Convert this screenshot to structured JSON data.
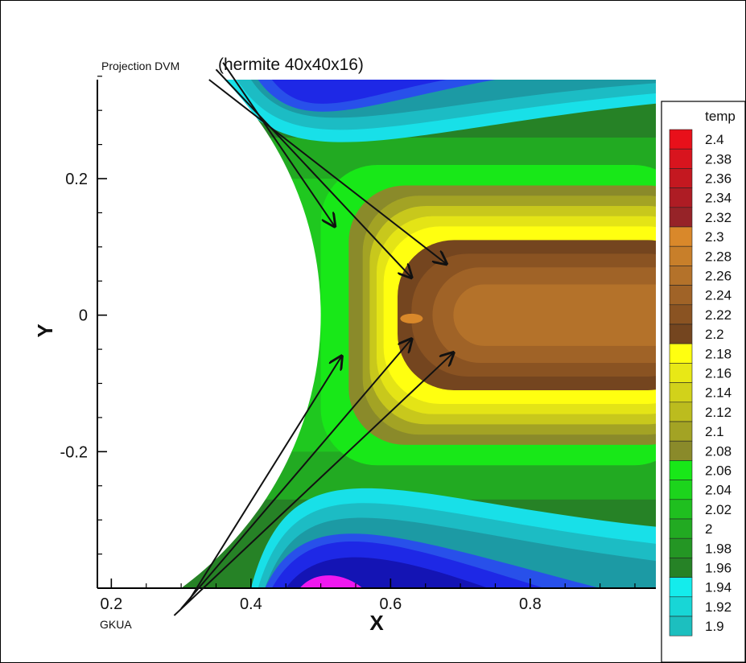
{
  "chart_data": {
    "type": "contour",
    "title": "(hermite 40x40x16)",
    "title_prefix": "Projection DVM",
    "bottom_label": "GKUA",
    "xlabel": "X",
    "ylabel": "Y",
    "xlim": [
      0.18,
      0.98
    ],
    "ylim": [
      -0.4,
      0.345
    ],
    "x_ticks": [
      0.2,
      0.4,
      0.6,
      0.8
    ],
    "x_tick_labels": [
      "0.2",
      "0.4",
      "0.6",
      "0.8"
    ],
    "y_ticks": [
      0.2,
      0,
      -0.2
    ],
    "y_tick_labels": [
      "0.2",
      "0",
      "-0.2"
    ],
    "body": {
      "shape": "cylinder",
      "center_x": 0.0,
      "center_y": 0.0,
      "radius": 0.5
    },
    "legend": {
      "title": "temp",
      "position": "right",
      "levels": [
        {
          "label": "2.4",
          "color": "#e8101a"
        },
        {
          "label": "2.38",
          "color": "#d8141e"
        },
        {
          "label": "2.36",
          "color": "#c41820"
        },
        {
          "label": "2.34",
          "color": "#ae1c24"
        },
        {
          "label": "2.32",
          "color": "#962328"
        },
        {
          "label": "2.3",
          "color": "#d9882a"
        },
        {
          "label": "2.28",
          "color": "#c87f2a"
        },
        {
          "label": "2.26",
          "color": "#b4722a"
        },
        {
          "label": "2.24",
          "color": "#a06327"
        },
        {
          "label": "2.22",
          "color": "#8a5322"
        },
        {
          "label": "2.2",
          "color": "#74451f"
        },
        {
          "label": "2.18",
          "color": "#ffff10"
        },
        {
          "label": "2.16",
          "color": "#e8e816"
        },
        {
          "label": "2.14",
          "color": "#d2d21a"
        },
        {
          "label": "2.12",
          "color": "#bcbc1e"
        },
        {
          "label": "2.1",
          "color": "#a3a324"
        },
        {
          "label": "2.08",
          "color": "#8a8a2a"
        },
        {
          "label": "2.06",
          "color": "#18e818"
        },
        {
          "label": "2.04",
          "color": "#1cd41c"
        },
        {
          "label": "2.02",
          "color": "#1fbf1f"
        },
        {
          "label": "2",
          "color": "#22aa22"
        },
        {
          "label": "1.98",
          "color": "#249624"
        },
        {
          "label": "1.96",
          "color": "#268226"
        },
        {
          "label": "1.94",
          "color": "#14ecec"
        },
        {
          "label": "1.92",
          "color": "#18d6d6"
        },
        {
          "label": "1.9",
          "color": "#1cbfbf"
        }
      ]
    },
    "field_zones": [
      {
        "name": "magenta",
        "color": "#ef18ef"
      },
      {
        "name": "blue-dark",
        "color": "#1414b4"
      },
      {
        "name": "blue",
        "color": "#1e28e6"
      },
      {
        "name": "blue-light",
        "color": "#2850ea"
      },
      {
        "name": "teal-3",
        "color": "#1c9aa4"
      },
      {
        "name": "teal-2",
        "color": "#1cbcc4"
      },
      {
        "name": "cyan",
        "color": "#18e0e8"
      },
      {
        "name": "green-dark",
        "color": "#268226"
      },
      {
        "name": "green-mid",
        "color": "#22aa22"
      },
      {
        "name": "green",
        "color": "#1fc81f"
      },
      {
        "name": "green-light",
        "color": "#18e818"
      },
      {
        "name": "olive",
        "color": "#8a8a2a"
      },
      {
        "name": "olive-2",
        "color": "#a3a324"
      },
      {
        "name": "yellow-dark",
        "color": "#c8c81c"
      },
      {
        "name": "yellow-mid",
        "color": "#e4e416"
      },
      {
        "name": "yellow",
        "color": "#ffff10"
      },
      {
        "name": "brown-dark",
        "color": "#74451f"
      },
      {
        "name": "brown",
        "color": "#8a5322"
      },
      {
        "name": "brown-mid",
        "color": "#a06327"
      },
      {
        "name": "brown-light",
        "color": "#b4722a"
      },
      {
        "name": "orange",
        "color": "#d9882a"
      }
    ],
    "arrows": [
      {
        "from": [
          0.36,
          0.37
        ],
        "to": [
          0.52,
          0.13
        ]
      },
      {
        "from": [
          0.35,
          0.36
        ],
        "to": [
          0.63,
          0.055
        ]
      },
      {
        "from": [
          0.34,
          0.345
        ],
        "to": [
          0.68,
          0.075
        ]
      },
      {
        "from": [
          0.31,
          -0.42
        ],
        "to": [
          0.53,
          -0.06
        ]
      },
      {
        "from": [
          0.3,
          -0.43
        ],
        "to": [
          0.63,
          -0.035
        ]
      },
      {
        "from": [
          0.29,
          -0.44
        ],
        "to": [
          0.69,
          -0.055
        ]
      }
    ]
  }
}
